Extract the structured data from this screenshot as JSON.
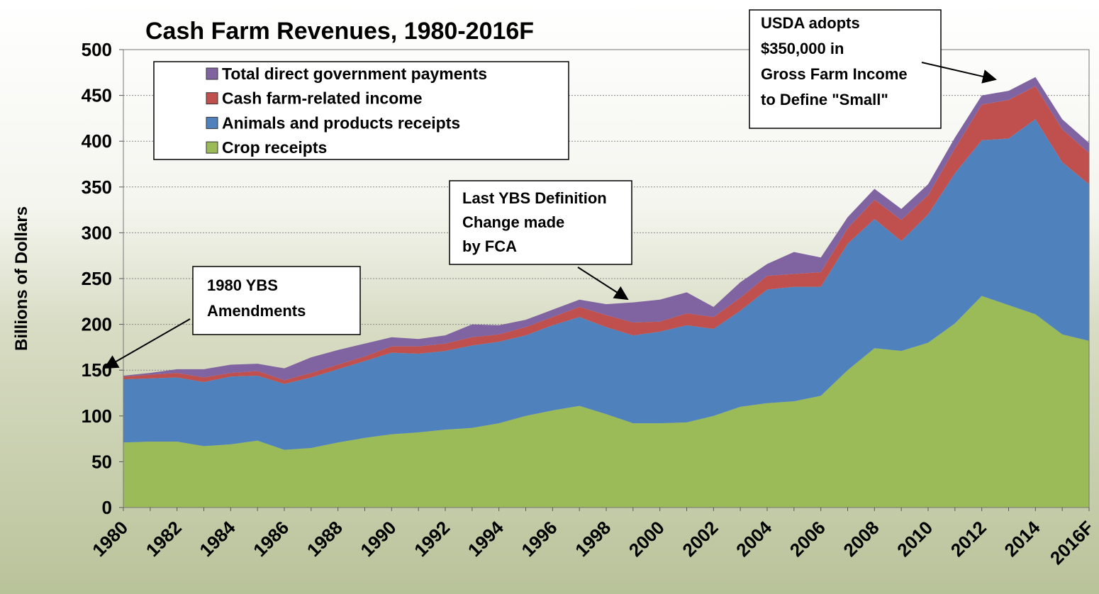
{
  "chart_data": {
    "type": "stacked-area",
    "title": "Cash Farm Revenues, 1980-2016F",
    "y_label": "Billions of Dollars",
    "categories": [
      "1980",
      null,
      "1982",
      null,
      "1984",
      null,
      "1986",
      null,
      "1988",
      null,
      "1990",
      null,
      "1992",
      null,
      "1994",
      null,
      "1996",
      null,
      "1998",
      null,
      "2000",
      null,
      "2002",
      null,
      "2004",
      null,
      "2006",
      null,
      "2008",
      null,
      "2010",
      null,
      "2012",
      null,
      "2014",
      null,
      "2016F"
    ],
    "series": [
      {
        "name": "Crop receipts",
        "color": "#9bbb59",
        "values": [
          71,
          72,
          72,
          67,
          69,
          73,
          63,
          65,
          71,
          76,
          80,
          82,
          85,
          87,
          92,
          100,
          106,
          111,
          102,
          92,
          92,
          93,
          100,
          110,
          114,
          116,
          122,
          150,
          174,
          171,
          180,
          201,
          231,
          221,
          211,
          189,
          182
        ]
      },
      {
        "name": "Animals and products receipts",
        "color": "#4f81bd",
        "values": [
          69,
          69,
          70,
          70,
          74,
          71,
          72,
          77,
          80,
          84,
          89,
          86,
          86,
          90,
          89,
          88,
          93,
          97,
          95,
          96,
          100,
          106,
          95,
          105,
          124,
          125,
          119,
          138,
          141,
          120,
          140,
          164,
          170,
          182,
          213,
          188,
          171
        ]
      },
      {
        "name": "Cash farm-related income",
        "color": "#c0504d",
        "values": [
          3,
          4,
          5,
          5,
          4,
          5,
          4,
          5,
          5,
          5,
          7,
          8,
          8,
          9,
          8,
          9,
          9,
          11,
          13,
          14,
          11,
          13,
          13,
          14,
          15,
          14,
          16,
          17,
          21,
          23,
          21,
          27,
          39,
          42,
          36,
          36,
          34
        ]
      },
      {
        "name": "Total direct government payments",
        "color": "#8064a2",
        "values": [
          1,
          2,
          4,
          9,
          9,
          8,
          13,
          17,
          16,
          14,
          10,
          8,
          9,
          14,
          10,
          8,
          8,
          8,
          12,
          22,
          24,
          23,
          11,
          17,
          13,
          24,
          16,
          12,
          12,
          12,
          12,
          12,
          10,
          10,
          10,
          11,
          11
        ]
      }
    ],
    "ylim": [
      0,
      500
    ],
    "yticks": [
      0,
      50,
      100,
      150,
      200,
      250,
      300,
      350,
      400,
      450,
      500
    ],
    "grid": true,
    "annotations": [
      {
        "lines": [
          "1980  YBS",
          "Amendments"
        ]
      },
      {
        "lines": [
          "Last YBS Definition",
          "Change made",
          "by FCA"
        ]
      },
      {
        "lines": [
          "USDA adopts",
          "$350,000 in",
          "Gross Farm Income",
          "to Define \"Small\""
        ]
      }
    ]
  }
}
